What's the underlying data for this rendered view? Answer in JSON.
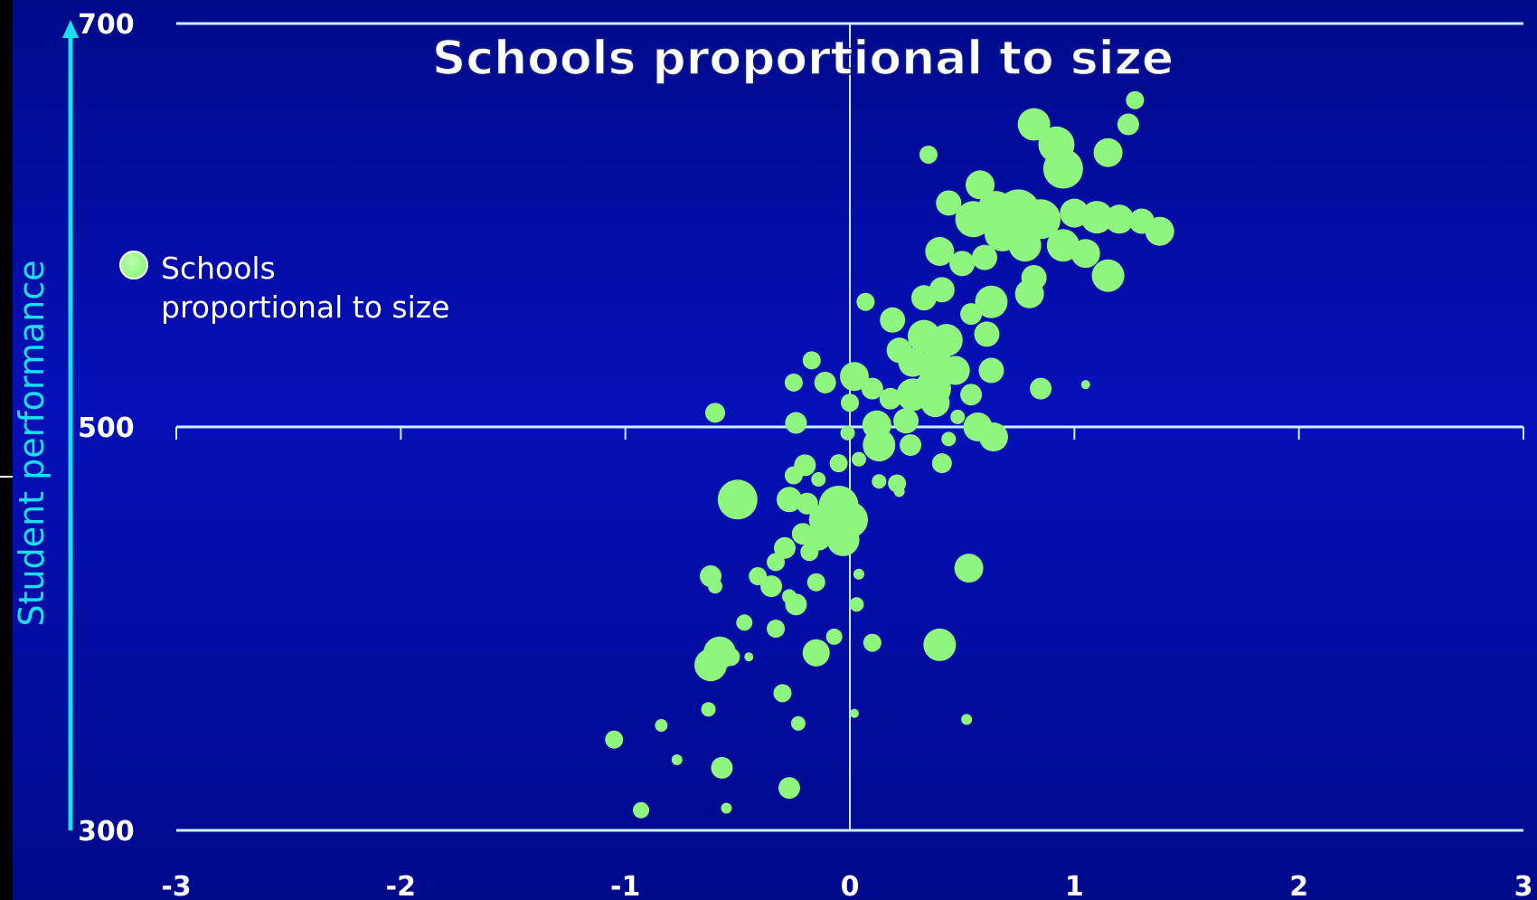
{
  "chart_data": {
    "type": "scatter",
    "title": "Schools proportional to size",
    "xlabel": "",
    "ylabel": "Student performance",
    "xlim": [
      -3,
      3
    ],
    "ylim": [
      300,
      700
    ],
    "x_ticks": [
      "-3",
      "-2",
      "-1",
      "0",
      "1",
      "2",
      "3"
    ],
    "y_ticks": [
      "300",
      "500",
      "700"
    ],
    "grid": false,
    "legend": {
      "placement": "left",
      "label_line1": "Schools",
      "label_line2": "proportional to size"
    },
    "colors": {
      "marker": "#8ef57e",
      "axis": "#c8f0ff",
      "ylabel": "#18e0f0",
      "background": "#0510b8"
    },
    "series": [
      {
        "name": "Schools proportional to size",
        "points": [
          {
            "x": 1.27,
            "y": 662,
            "size": 10
          },
          {
            "x": 0.82,
            "y": 650,
            "size": 18
          },
          {
            "x": 1.24,
            "y": 650,
            "size": 12
          },
          {
            "x": 0.92,
            "y": 640,
            "size": 20
          },
          {
            "x": 0.35,
            "y": 635,
            "size": 10
          },
          {
            "x": 1.15,
            "y": 636,
            "size": 16
          },
          {
            "x": 0.95,
            "y": 628,
            "size": 22
          },
          {
            "x": 0.58,
            "y": 620,
            "size": 16
          },
          {
            "x": 0.44,
            "y": 611,
            "size": 14
          },
          {
            "x": 0.65,
            "y": 608,
            "size": 20
          },
          {
            "x": 0.75,
            "y": 607,
            "size": 24
          },
          {
            "x": 0.55,
            "y": 603,
            "size": 20
          },
          {
            "x": 0.85,
            "y": 603,
            "size": 22
          },
          {
            "x": 1.0,
            "y": 606,
            "size": 16
          },
          {
            "x": 1.1,
            "y": 604,
            "size": 18
          },
          {
            "x": 1.2,
            "y": 603,
            "size": 16
          },
          {
            "x": 1.3,
            "y": 602,
            "size": 14
          },
          {
            "x": 1.38,
            "y": 597,
            "size": 16
          },
          {
            "x": 0.68,
            "y": 596,
            "size": 20
          },
          {
            "x": 0.78,
            "y": 590,
            "size": 18
          },
          {
            "x": 0.4,
            "y": 587,
            "size": 16
          },
          {
            "x": 0.95,
            "y": 590,
            "size": 18
          },
          {
            "x": 1.05,
            "y": 586,
            "size": 16
          },
          {
            "x": 0.6,
            "y": 584,
            "size": 14
          },
          {
            "x": 0.5,
            "y": 581,
            "size": 14
          },
          {
            "x": 0.82,
            "y": 574,
            "size": 14
          },
          {
            "x": 1.15,
            "y": 575,
            "size": 18
          },
          {
            "x": 0.41,
            "y": 568,
            "size": 14
          },
          {
            "x": 0.8,
            "y": 566,
            "size": 16
          },
          {
            "x": 0.33,
            "y": 564,
            "size": 14
          },
          {
            "x": 0.07,
            "y": 562,
            "size": 10
          },
          {
            "x": 0.63,
            "y": 562,
            "size": 18
          },
          {
            "x": 0.19,
            "y": 553,
            "size": 14
          },
          {
            "x": 0.54,
            "y": 556,
            "size": 12
          },
          {
            "x": 0.61,
            "y": 546,
            "size": 14
          },
          {
            "x": 0.33,
            "y": 545,
            "size": 18
          },
          {
            "x": 0.43,
            "y": 543,
            "size": 18
          },
          {
            "x": 0.22,
            "y": 538,
            "size": 14
          },
          {
            "x": 0.28,
            "y": 532,
            "size": 16
          },
          {
            "x": 0.38,
            "y": 530,
            "size": 20
          },
          {
            "x": 0.47,
            "y": 528,
            "size": 16
          },
          {
            "x": -0.17,
            "y": 533,
            "size": 10
          },
          {
            "x": 0.63,
            "y": 528,
            "size": 14
          },
          {
            "x": 0.02,
            "y": 525,
            "size": 16
          },
          {
            "x": -0.25,
            "y": 522,
            "size": 10
          },
          {
            "x": -0.11,
            "y": 522,
            "size": 12
          },
          {
            "x": 0.1,
            "y": 519,
            "size": 12
          },
          {
            "x": 0.37,
            "y": 519,
            "size": 20
          },
          {
            "x": 0.85,
            "y": 519,
            "size": 12
          },
          {
            "x": 1.05,
            "y": 521,
            "size": 5
          },
          {
            "x": 0.54,
            "y": 516,
            "size": 12
          },
          {
            "x": 0.18,
            "y": 514,
            "size": 12
          },
          {
            "x": 0.28,
            "y": 516,
            "size": 18
          },
          {
            "x": 0.38,
            "y": 512,
            "size": 16
          },
          {
            "x": -0.6,
            "y": 507,
            "size": 11
          },
          {
            "x": 0.0,
            "y": 512,
            "size": 10
          },
          {
            "x": 0.48,
            "y": 505,
            "size": 8
          },
          {
            "x": -0.24,
            "y": 502,
            "size": 12
          },
          {
            "x": 0.12,
            "y": 501,
            "size": 16
          },
          {
            "x": 0.25,
            "y": 503,
            "size": 14
          },
          {
            "x": 0.57,
            "y": 500,
            "size": 16
          },
          {
            "x": -0.01,
            "y": 497,
            "size": 8
          },
          {
            "x": 0.64,
            "y": 495,
            "size": 16
          },
          {
            "x": 0.44,
            "y": 494,
            "size": 8
          },
          {
            "x": 0.13,
            "y": 491,
            "size": 18
          },
          {
            "x": 0.27,
            "y": 491,
            "size": 12
          },
          {
            "x": -0.05,
            "y": 482,
            "size": 10
          },
          {
            "x": 0.04,
            "y": 484,
            "size": 8
          },
          {
            "x": -0.2,
            "y": 481,
            "size": 12
          },
          {
            "x": 0.41,
            "y": 482,
            "size": 11
          },
          {
            "x": -0.25,
            "y": 476,
            "size": 10
          },
          {
            "x": -0.14,
            "y": 474,
            "size": 8
          },
          {
            "x": 0.13,
            "y": 473,
            "size": 8
          },
          {
            "x": 0.21,
            "y": 472,
            "size": 10
          },
          {
            "x": 0.22,
            "y": 468,
            "size": 6
          },
          {
            "x": -0.5,
            "y": 464,
            "size": 22
          },
          {
            "x": -0.27,
            "y": 464,
            "size": 14
          },
          {
            "x": -0.19,
            "y": 462,
            "size": 12
          },
          {
            "x": -0.05,
            "y": 461,
            "size": 22
          },
          {
            "x": -0.11,
            "y": 454,
            "size": 18
          },
          {
            "x": 0.0,
            "y": 454,
            "size": 20
          },
          {
            "x": -0.21,
            "y": 447,
            "size": 12
          },
          {
            "x": -0.14,
            "y": 445,
            "size": 14
          },
          {
            "x": -0.03,
            "y": 444,
            "size": 18
          },
          {
            "x": -0.29,
            "y": 440,
            "size": 12
          },
          {
            "x": -0.18,
            "y": 438,
            "size": 10
          },
          {
            "x": -0.33,
            "y": 433,
            "size": 10
          },
          {
            "x": 0.53,
            "y": 430,
            "size": 16
          },
          {
            "x": 0.04,
            "y": 427,
            "size": 6
          },
          {
            "x": -0.41,
            "y": 426,
            "size": 10
          },
          {
            "x": -0.62,
            "y": 426,
            "size": 12
          },
          {
            "x": -0.15,
            "y": 423,
            "size": 10
          },
          {
            "x": -0.6,
            "y": 421,
            "size": 8
          },
          {
            "x": -0.35,
            "y": 421,
            "size": 12
          },
          {
            "x": -0.27,
            "y": 416,
            "size": 8
          },
          {
            "x": -0.24,
            "y": 412,
            "size": 12
          },
          {
            "x": 0.03,
            "y": 412,
            "size": 8
          },
          {
            "x": -0.47,
            "y": 403,
            "size": 9
          },
          {
            "x": -0.33,
            "y": 400,
            "size": 10
          },
          {
            "x": -0.07,
            "y": 396,
            "size": 9
          },
          {
            "x": 0.1,
            "y": 393,
            "size": 10
          },
          {
            "x": 0.4,
            "y": 392,
            "size": 18
          },
          {
            "x": -0.15,
            "y": 388,
            "size": 15
          },
          {
            "x": -0.58,
            "y": 388,
            "size": 18
          },
          {
            "x": -0.53,
            "y": 386,
            "size": 10
          },
          {
            "x": -0.45,
            "y": 386,
            "size": 5
          },
          {
            "x": -0.62,
            "y": 382,
            "size": 18
          },
          {
            "x": -0.3,
            "y": 368,
            "size": 10
          },
          {
            "x": -0.63,
            "y": 360,
            "size": 8
          },
          {
            "x": 0.02,
            "y": 358,
            "size": 5
          },
          {
            "x": 0.52,
            "y": 355,
            "size": 6
          },
          {
            "x": -0.84,
            "y": 352,
            "size": 7
          },
          {
            "x": -0.23,
            "y": 353,
            "size": 8
          },
          {
            "x": -1.05,
            "y": 345,
            "size": 10
          },
          {
            "x": -0.77,
            "y": 335,
            "size": 6
          },
          {
            "x": -0.57,
            "y": 331,
            "size": 12
          },
          {
            "x": -0.27,
            "y": 321,
            "size": 12
          },
          {
            "x": -0.93,
            "y": 310,
            "size": 9
          },
          {
            "x": -0.55,
            "y": 311,
            "size": 6
          }
        ]
      }
    ]
  }
}
